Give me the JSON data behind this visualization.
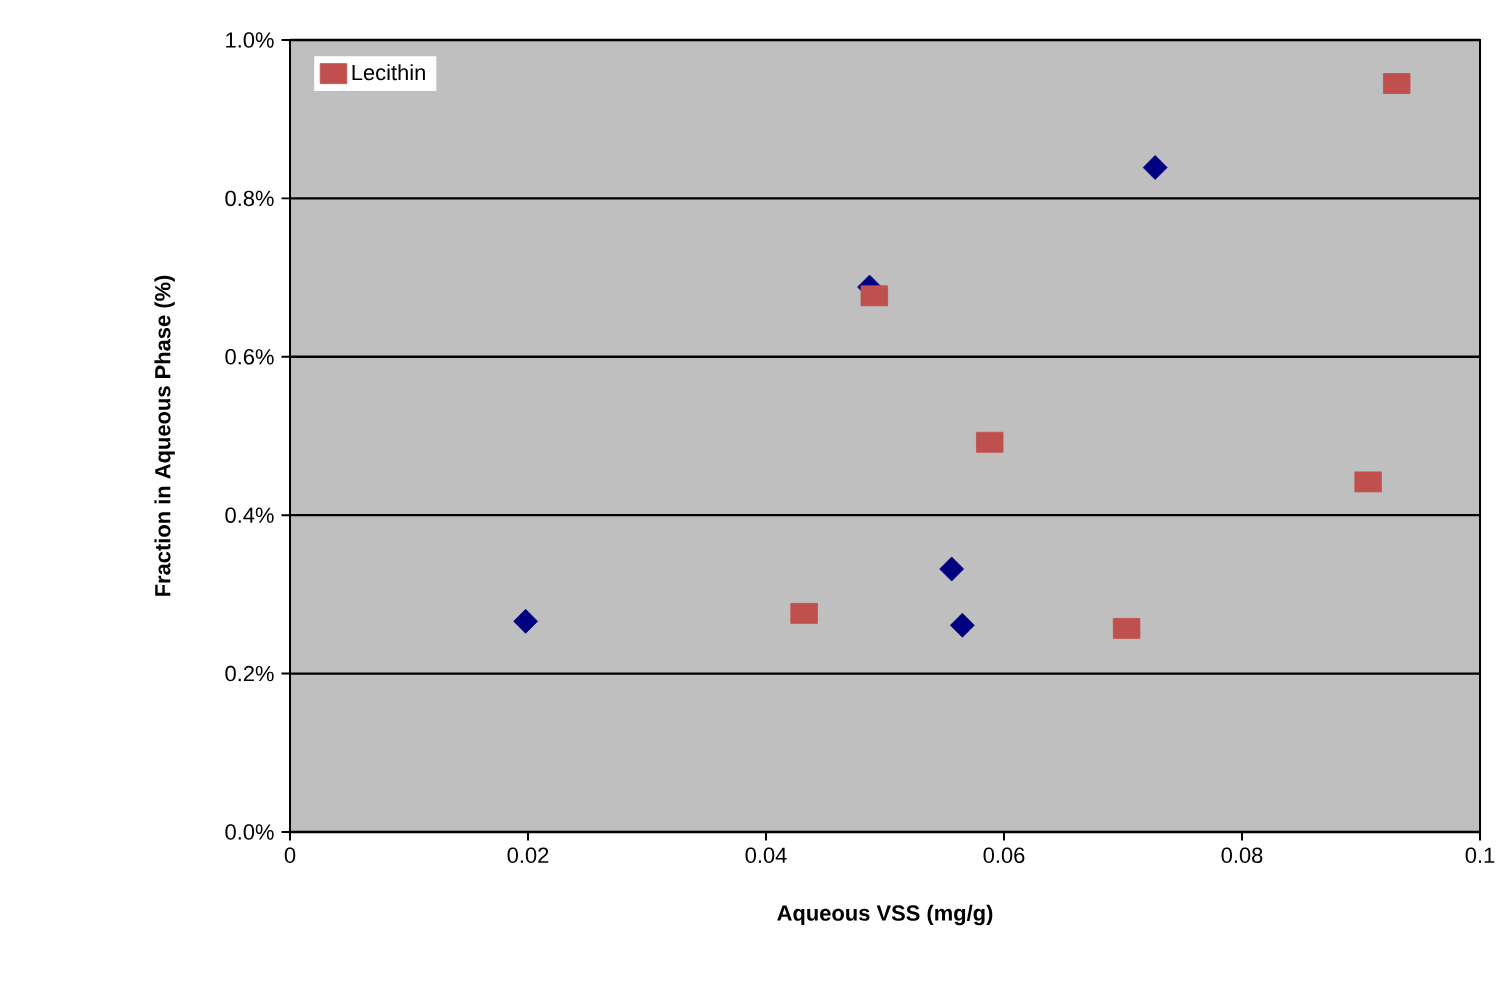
{
  "chart_data": {
    "type": "scatter",
    "xlabel": "Aqueous VSS (mg/g)",
    "ylabel": "Fraction in Aqueous Phase (%)",
    "series": [
      {
        "color": "#000080",
        "marker": "diamond",
        "x": [
          0.0198,
          0.0487,
          0.0556,
          0.0565,
          0.0727
        ],
        "values": [
          0.266,
          0.688,
          0.332,
          0.261,
          0.839
        ]
      },
      {
        "name": "Lecithin",
        "color": "#c0504d",
        "marker": "square",
        "x": [
          0.0432,
          0.0491,
          0.0588,
          0.0703,
          0.0906,
          0.093
        ],
        "values": [
          0.276,
          0.677,
          0.492,
          0.257,
          0.442,
          0.945
        ]
      }
    ],
    "xlim": [
      0,
      0.1
    ],
    "xticks": [
      0,
      0.02,
      0.04,
      0.06,
      0.08,
      0.1
    ],
    "ylim": [
      0,
      1.0
    ],
    "yticks": [
      {
        "value": 0,
        "label": "0.0%"
      },
      {
        "value": 0.2,
        "label": "0.2%"
      },
      {
        "value": 0.4,
        "label": "0.4%"
      },
      {
        "value": 0.6,
        "label": "0.6%"
      },
      {
        "value": 0.8,
        "label": "0.8%"
      },
      {
        "value": 1.0,
        "label": "1.0%"
      }
    ],
    "grid": "y",
    "legend": "top left"
  }
}
